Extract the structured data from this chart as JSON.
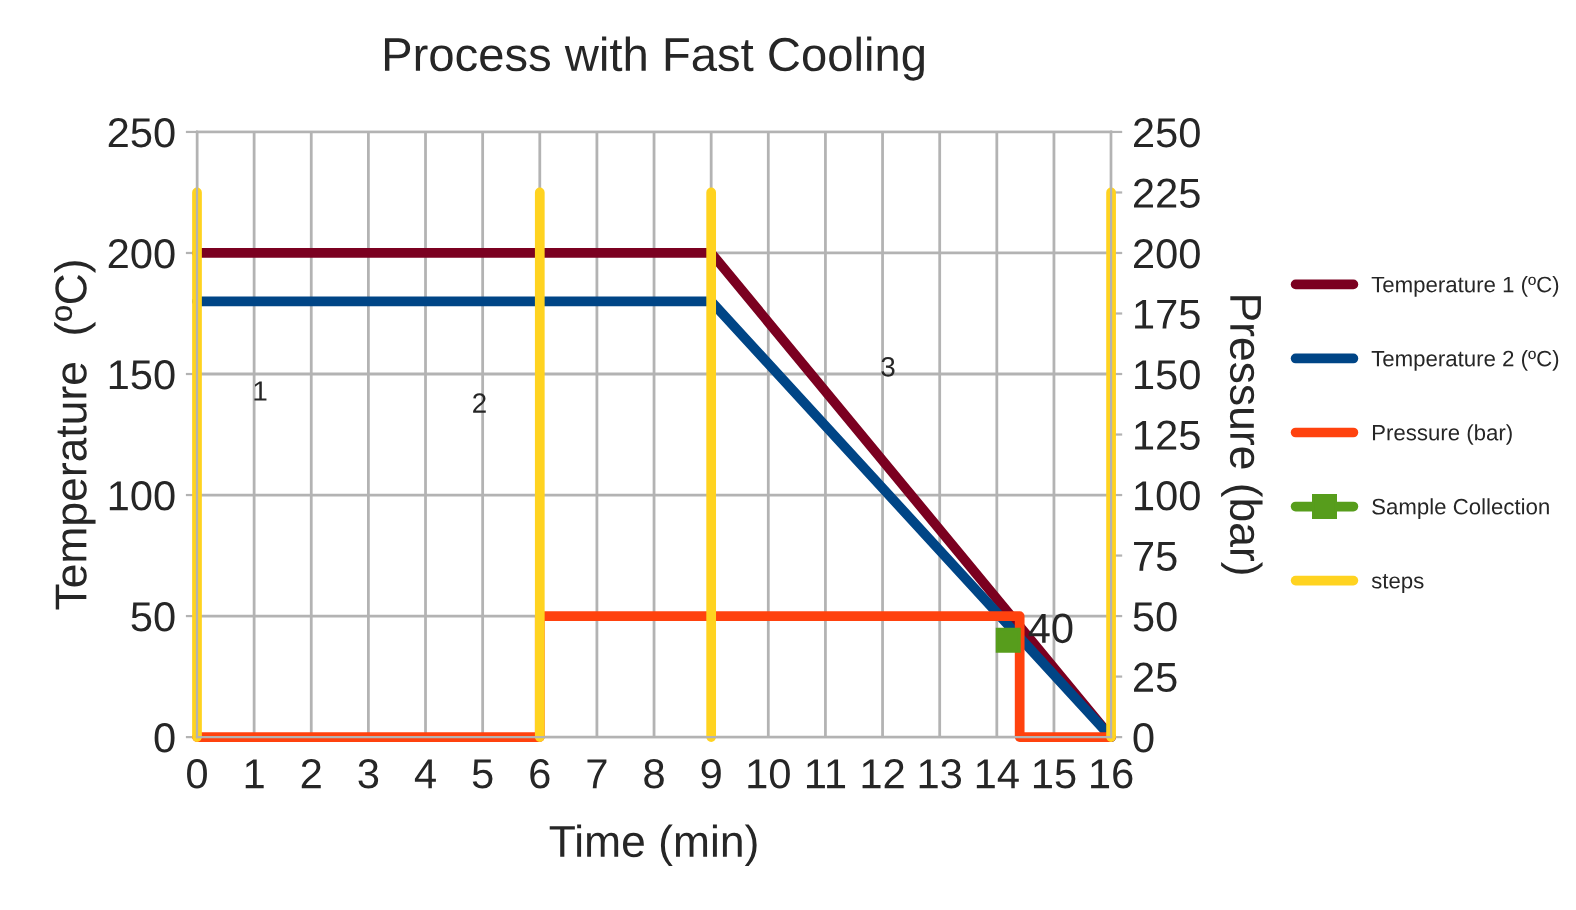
{
  "chart_data": {
    "type": "line",
    "title": "Process with Fast Cooling",
    "xlabel": "Time (min)",
    "ylabel": "Temperature  (ºC)",
    "y2label": "Pressure (bar)",
    "xlim": [
      0,
      16
    ],
    "xticks": [
      0,
      1,
      2,
      3,
      4,
      5,
      6,
      7,
      8,
      9,
      10,
      11,
      12,
      13,
      14,
      15,
      16
    ],
    "ylim": [
      0,
      250
    ],
    "yticks": [
      0,
      50,
      100,
      150,
      200,
      250
    ],
    "y2lim": [
      0,
      250
    ],
    "y2ticks": [
      0,
      25,
      50,
      75,
      100,
      125,
      150,
      175,
      200,
      225,
      250
    ],
    "grid": true,
    "legend": "right",
    "series": [
      {
        "name": "Temperature 1 (ºC)",
        "color": "#7b0020",
        "x": [
          0,
          9,
          16
        ],
        "values": [
          200,
          200,
          0
        ]
      },
      {
        "name": "Temperature 2 (ºC)",
        "color": "#004586",
        "x": [
          0,
          9,
          16
        ],
        "values": [
          180,
          180,
          0
        ]
      },
      {
        "name": "Pressure (bar)",
        "color": "#ff420e",
        "axis": "y2",
        "x": [
          0,
          6,
          6,
          14.4,
          14.4,
          16
        ],
        "values": [
          0,
          0,
          50,
          50,
          0,
          0
        ]
      },
      {
        "name": "Sample Collection",
        "color": "#579d1c",
        "axis": "y2",
        "marker": "square",
        "x": [
          14.2
        ],
        "values": [
          40
        ],
        "value_labels": [
          "40"
        ]
      },
      {
        "name": "steps",
        "color": "#ffd320",
        "axis": "y2",
        "x": [
          0,
          0,
          null,
          6,
          6,
          null,
          9,
          9,
          null,
          16,
          16
        ],
        "values": [
          0,
          225,
          null,
          0,
          225,
          null,
          0,
          225,
          null,
          0,
          225
        ]
      }
    ],
    "annotations": [
      "1",
      "2",
      "3"
    ]
  }
}
